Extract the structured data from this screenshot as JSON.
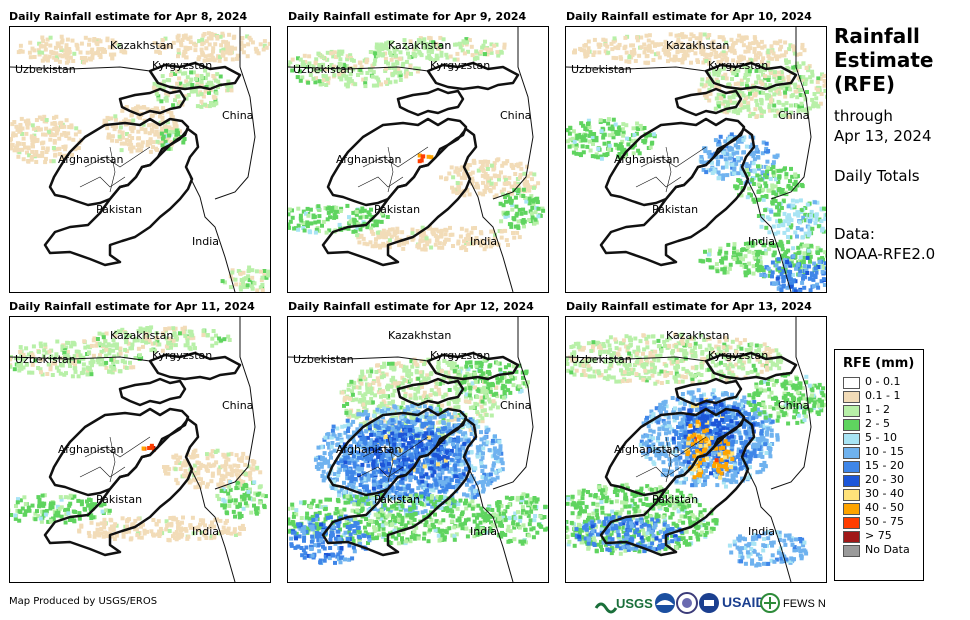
{
  "panels": [
    {
      "title": "Daily Rainfall estimate for Apr 8, 2024",
      "intensity": 0
    },
    {
      "title": "Daily Rainfall estimate for Apr 9, 2024",
      "intensity": 1
    },
    {
      "title": "Daily Rainfall estimate for Apr 10, 2024",
      "intensity": 2
    },
    {
      "title": "Daily Rainfall estimate for Apr 11, 2024",
      "intensity": 1
    },
    {
      "title": "Daily Rainfall estimate for Apr 12, 2024",
      "intensity": 3
    },
    {
      "title": "Daily Rainfall estimate for Apr 13, 2024",
      "intensity": 4
    }
  ],
  "map_labels": {
    "kazakhstan": "Kazakhstan",
    "uzbekistan": "Uzbekistan",
    "kyrgyzstan": "Kyrgyzstan",
    "china": "China",
    "afghanistan": "Afghanistan",
    "pakistan": "Pakistan",
    "india": "India"
  },
  "sidebar": {
    "title_line1": "Rainfall",
    "title_line2": "Estimate",
    "title_line3": "(RFE)",
    "through": "through",
    "date": "Apr 13, 2024",
    "totals": "Daily Totals",
    "data_label": "Data:",
    "data_source": "NOAA-RFE2.0"
  },
  "legend": {
    "title": "RFE (mm)",
    "items": [
      {
        "label": "0 - 0.1",
        "color": "#ffffff"
      },
      {
        "label": "0.1 - 1",
        "color": "#f2dcb8"
      },
      {
        "label": "1 - 2",
        "color": "#b8f0a8"
      },
      {
        "label": "2 - 5",
        "color": "#5fd45f"
      },
      {
        "label": "5 - 10",
        "color": "#a8e4f4"
      },
      {
        "label": "10 - 15",
        "color": "#6fb2ef"
      },
      {
        "label": "15 - 20",
        "color": "#3f86e8"
      },
      {
        "label": "20 - 30",
        "color": "#1c56d8"
      },
      {
        "label": "30 - 40",
        "color": "#ffe27a"
      },
      {
        "label": "40 - 50",
        "color": "#ffa400"
      },
      {
        "label": "50 - 75",
        "color": "#ff3d00"
      },
      {
        "label": "> 75",
        "color": "#a01818"
      },
      {
        "label": "No Data",
        "color": "#9a9a9a"
      }
    ]
  },
  "footer": "Map Produced by USGS/EROS",
  "logos": {
    "usgs": "USGS",
    "usaid": "USAID",
    "fewsnet": "FEWS NET"
  }
}
